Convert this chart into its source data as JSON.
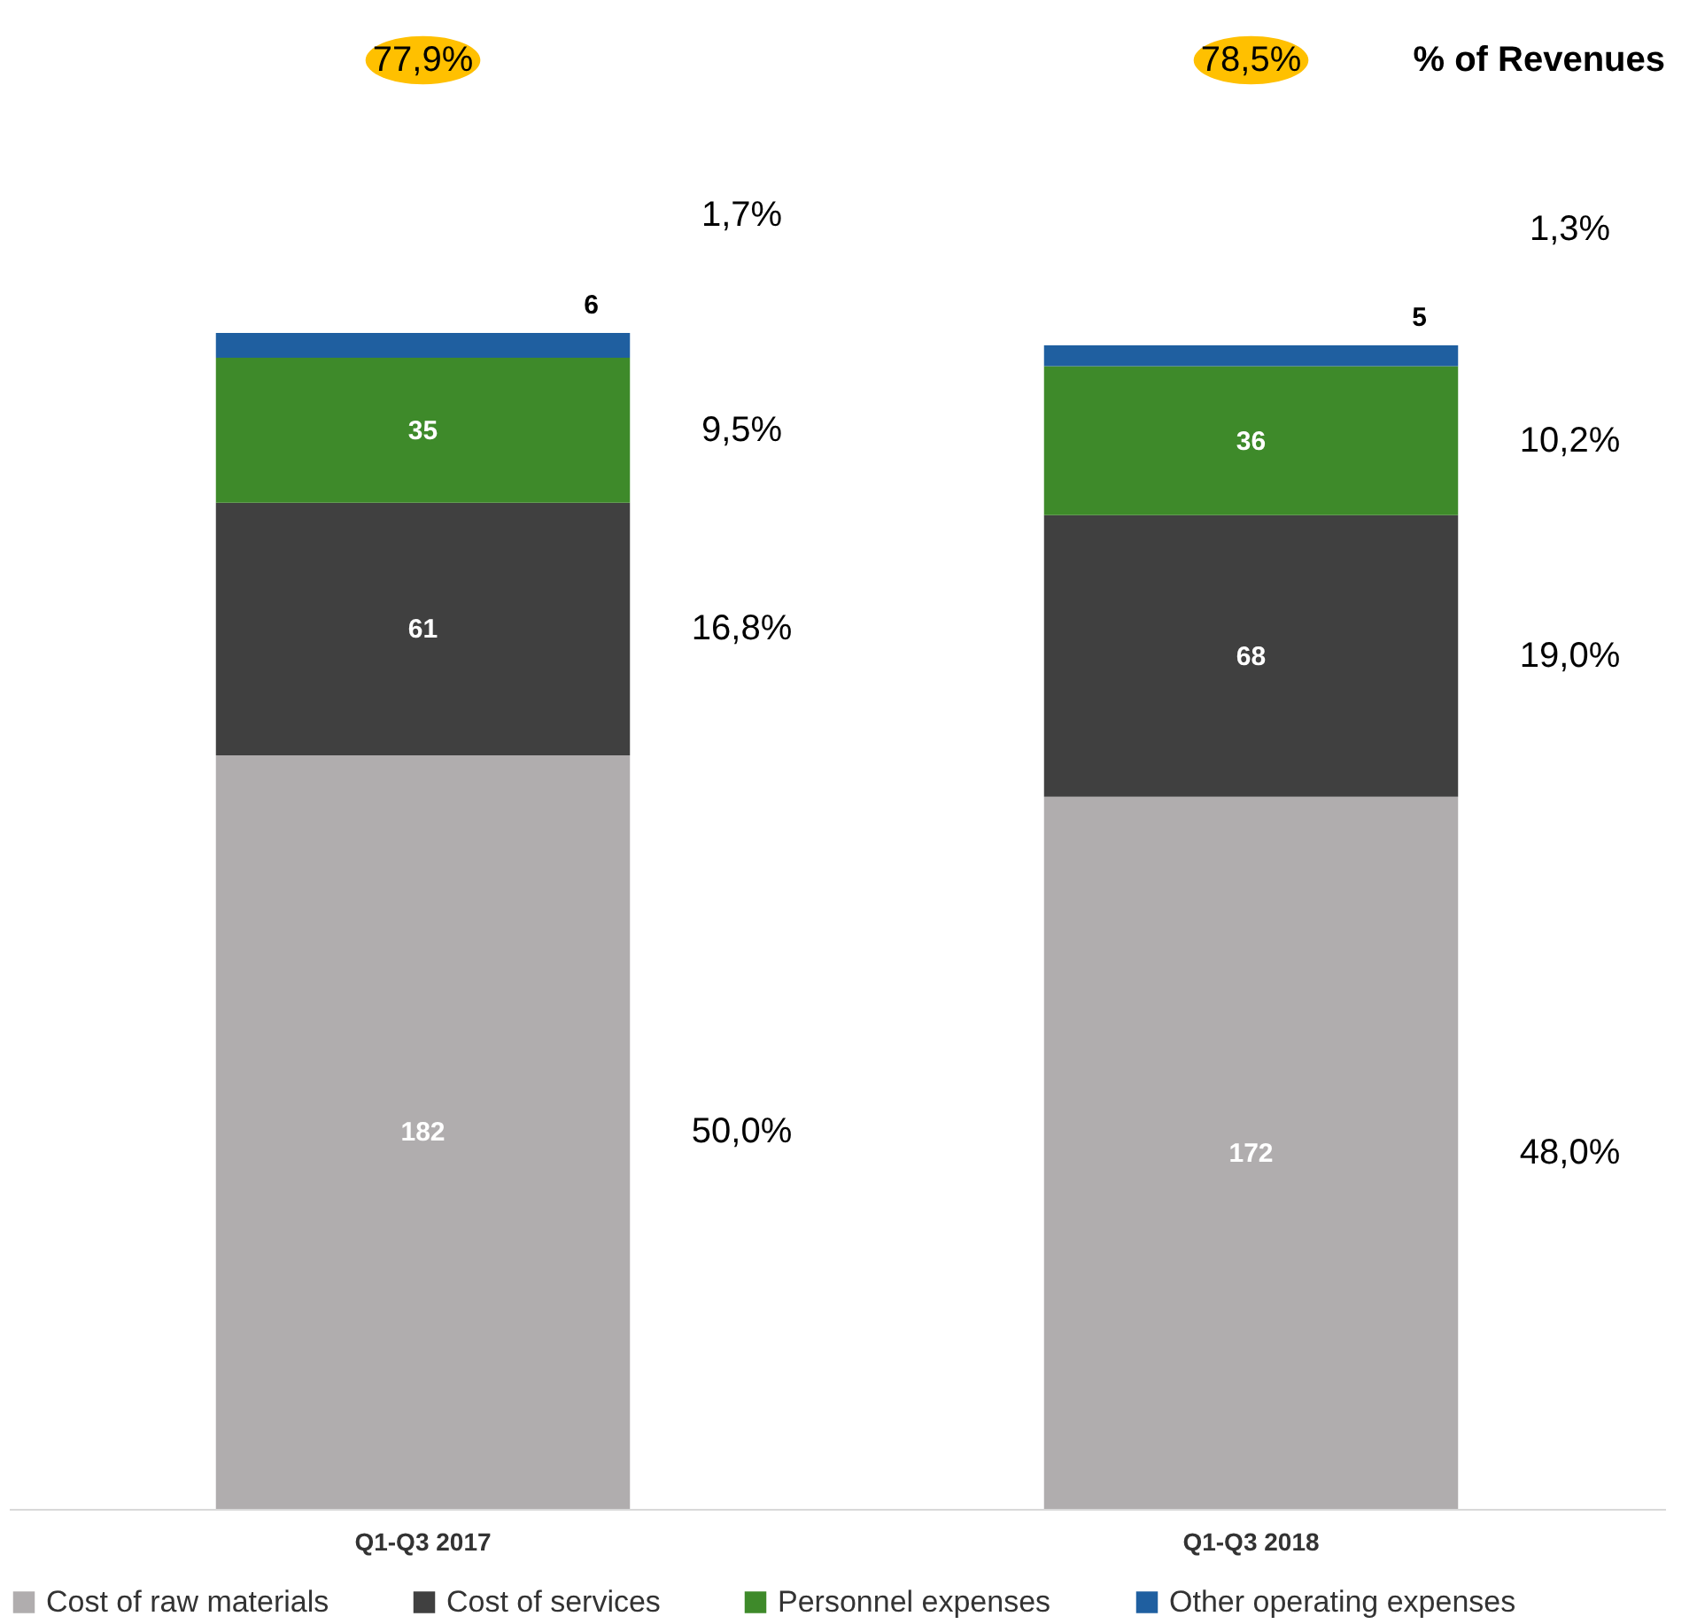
{
  "chart_data": {
    "type": "bar",
    "stacked": true,
    "data_labels": true,
    "legend": "bottom",
    "grid": false,
    "categories": [
      "Q1-Q3 2017",
      "Q1-Q3 2018"
    ],
    "series": [
      {
        "name": "Cost of raw materials",
        "color": "#b0adae",
        "values": [
          182,
          172
        ]
      },
      {
        "name": "Cost of services",
        "color": "#404040",
        "values": [
          61,
          68
        ]
      },
      {
        "name": "Personnel expenses",
        "color": "#3e8a2a",
        "values": [
          35,
          36
        ]
      },
      {
        "name": "Other operating expenses",
        "color": "#1f5fa0",
        "values": [
          6,
          5
        ]
      }
    ],
    "annotations": [
      "77,9%",
      "78,5%",
      "% of Revenues",
      "50,0%",
      "16,8%",
      "9,5%",
      "1,7%",
      "48,0%",
      "19,0%",
      "10,2%",
      "1,3%"
    ]
  }
}
